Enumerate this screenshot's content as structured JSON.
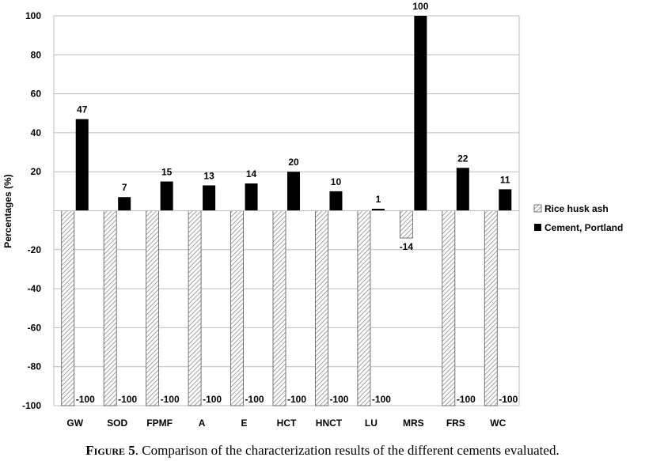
{
  "chart_data": {
    "type": "bar",
    "categories": [
      "GW",
      "SOD",
      "FPMF",
      "A",
      "E",
      "HCT",
      "HNCT",
      "LU",
      "MRS",
      "FRS",
      "WC"
    ],
    "series": [
      {
        "name": "Rice husk ash",
        "values": [
          -100,
          -100,
          -100,
          -100,
          -100,
          -100,
          -100,
          -100,
          -14,
          -100,
          -100
        ],
        "pattern": "hatched",
        "color": "#ffffff"
      },
      {
        "name": "Cement, Portland",
        "values": [
          47,
          7,
          15,
          13,
          14,
          20,
          10,
          1,
          100,
          22,
          11
        ],
        "color": "#000000"
      }
    ],
    "ylabel": "Percentages (%)",
    "ylim": [
      -100,
      100
    ],
    "yticks": [
      "100",
      "80",
      "60",
      "40",
      "20",
      "",
      "-20",
      "-40",
      "-60",
      "-80",
      "-100"
    ],
    "grid": true,
    "legend_position": "right"
  },
  "caption": {
    "figure_label": "Figure 5",
    "text": ". Comparison of the characterization results of the different cements evaluated."
  }
}
